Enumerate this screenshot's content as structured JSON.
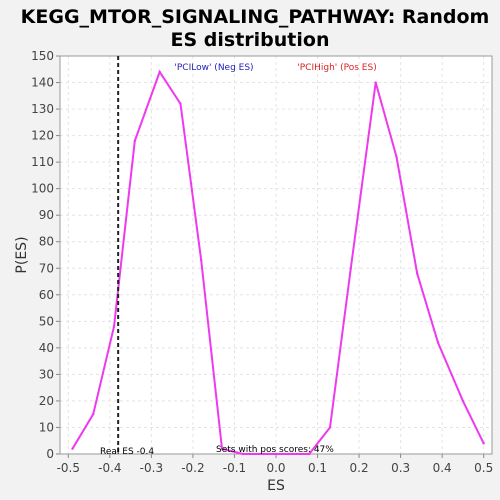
{
  "chart_data": {
    "type": "line",
    "title_line1": "KEGG_MTOR_SIGNALING_PATHWAY: Random",
    "title_line2": "ES distribution",
    "xlabel": "ES",
    "ylabel": "P(ES)",
    "xlim": [
      -0.52,
      0.52
    ],
    "ylim": [
      0,
      150
    ],
    "x_ticks": [
      "-0.5",
      "-0.4",
      "-0.3",
      "-0.2",
      "-0.1",
      "0.0",
      "0.1",
      "0.2",
      "0.3",
      "0.4",
      "0.5"
    ],
    "y_ticks": [
      "0",
      "10",
      "20",
      "30",
      "40",
      "50",
      "60",
      "70",
      "80",
      "90",
      "100",
      "110",
      "120",
      "130",
      "140",
      "150"
    ],
    "grid": true,
    "series": [
      {
        "color": "#ee3aee",
        "points": [
          {
            "x": -0.49,
            "y": 2
          },
          {
            "x": -0.44,
            "y": 15
          },
          {
            "x": -0.39,
            "y": 48
          },
          {
            "x": -0.34,
            "y": 118
          },
          {
            "x": -0.28,
            "y": 144
          },
          {
            "x": -0.23,
            "y": 132
          },
          {
            "x": -0.18,
            "y": 73
          },
          {
            "x": -0.13,
            "y": 2
          },
          {
            "x": -0.08,
            "y": 0
          },
          {
            "x": -0.03,
            "y": 0
          },
          {
            "x": 0.03,
            "y": 0
          },
          {
            "x": 0.08,
            "y": 0
          },
          {
            "x": 0.13,
            "y": 10
          },
          {
            "x": 0.18,
            "y": 70
          },
          {
            "x": 0.24,
            "y": 140
          },
          {
            "x": 0.29,
            "y": 112
          },
          {
            "x": 0.34,
            "y": 68
          },
          {
            "x": 0.39,
            "y": 42
          },
          {
            "x": 0.45,
            "y": 20
          },
          {
            "x": 0.5,
            "y": 4
          }
        ]
      }
    ],
    "real_es": -0.38,
    "annotations": {
      "neg_label": "'PCILow' (Neg ES)",
      "pos_label": "'PCIHigh' (Pos ES)",
      "real_es_label": "Real ES -0.4",
      "pos_scores_label": "Sets with pos scores: 47%"
    },
    "colors": {
      "neg_label": "#2222bb",
      "pos_label": "#dd2222",
      "line": "#ee3aee"
    }
  }
}
